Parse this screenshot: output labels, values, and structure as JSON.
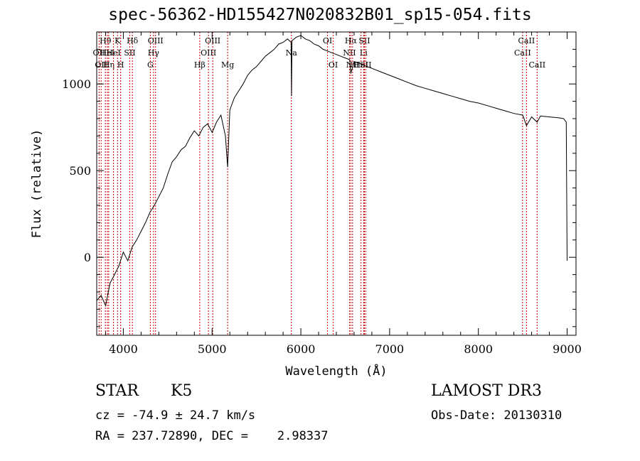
{
  "chart_data": {
    "type": "line",
    "title": "spec-56362-HD155427N020832B01_sp15-054.fits",
    "xlabel": "Wavelength (Å)",
    "ylabel": "Flux (relative)",
    "xlim": [
      3700,
      9100
    ],
    "ylim": [
      -450,
      1300
    ],
    "xticks": [
      4000,
      5000,
      6000,
      7000,
      8000,
      9000
    ],
    "yticks": [
      0,
      500,
      1000
    ],
    "series": [
      {
        "name": "spectrum",
        "x": [
          3700,
          3750,
          3800,
          3850,
          3900,
          3950,
          4000,
          4050,
          4100,
          4150,
          4200,
          4250,
          4300,
          4350,
          4400,
          4450,
          4500,
          4550,
          4600,
          4650,
          4700,
          4750,
          4800,
          4850,
          4900,
          4950,
          5000,
          5050,
          5100,
          5150,
          5175,
          5200,
          5250,
          5300,
          5350,
          5400,
          5450,
          5500,
          5550,
          5600,
          5650,
          5700,
          5750,
          5800,
          5850,
          5890,
          5895,
          5900,
          5950,
          6000,
          6050,
          6100,
          6150,
          6200,
          6250,
          6300,
          6350,
          6400,
          6450,
          6500,
          6550,
          6563,
          6600,
          6650,
          6700,
          6750,
          6800,
          6900,
          7000,
          7100,
          7200,
          7300,
          7400,
          7500,
          7600,
          7700,
          7800,
          7900,
          8000,
          8100,
          8200,
          8300,
          8400,
          8500,
          8542,
          8600,
          8662,
          8700,
          8800,
          8900,
          8960,
          8990,
          9000
        ],
        "y": [
          -250,
          -220,
          -280,
          -150,
          -100,
          -50,
          30,
          -20,
          60,
          100,
          150,
          200,
          260,
          300,
          350,
          400,
          480,
          550,
          580,
          620,
          640,
          690,
          730,
          700,
          750,
          770,
          720,
          780,
          820,
          700,
          520,
          850,
          920,
          960,
          1000,
          1050,
          1080,
          1100,
          1130,
          1160,
          1180,
          1200,
          1230,
          1240,
          1260,
          1240,
          930,
          1250,
          1270,
          1280,
          1260,
          1250,
          1230,
          1220,
          1200,
          1190,
          1180,
          1170,
          1160,
          1150,
          1140,
          1060,
          1130,
          1120,
          1110,
          1100,
          1090,
          1070,
          1050,
          1030,
          1010,
          990,
          975,
          960,
          945,
          930,
          915,
          900,
          890,
          875,
          860,
          845,
          830,
          820,
          760,
          810,
          780,
          815,
          810,
          805,
          800,
          780,
          -20
        ]
      }
    ],
    "lines": [
      {
        "wavelength": 3727,
        "label": "OII",
        "row": 2
      },
      {
        "wavelength": 3750,
        "label": "OII",
        "row": 3
      },
      {
        "wavelength": 3798,
        "label": "Hθ",
        "row": 1
      },
      {
        "wavelength": 3820,
        "label": "HeI",
        "row": 2
      },
      {
        "wavelength": 3835,
        "label": "Hη",
        "row": 3
      },
      {
        "wavelength": 3889,
        "label": "HeI",
        "row": 2
      },
      {
        "wavelength": 3934,
        "label": "K",
        "row": 1
      },
      {
        "wavelength": 3970,
        "label": "H",
        "row": 3
      },
      {
        "wavelength": 4072,
        "label": "SII",
        "row": 2
      },
      {
        "wavelength": 4102,
        "label": "Hδ",
        "row": 1
      },
      {
        "wavelength": 4304,
        "label": "G",
        "row": 3
      },
      {
        "wavelength": 4340,
        "label": "Hγ",
        "row": 2
      },
      {
        "wavelength": 4363,
        "label": "OIII",
        "row": 1
      },
      {
        "wavelength": 4861,
        "label": "Hβ",
        "row": 3
      },
      {
        "wavelength": 4959,
        "label": "OIII",
        "row": 2
      },
      {
        "wavelength": 5007,
        "label": "OIII",
        "row": 1
      },
      {
        "wavelength": 5175,
        "label": "Mg",
        "row": 3
      },
      {
        "wavelength": 5893,
        "label": "Na",
        "row": 2
      },
      {
        "wavelength": 6300,
        "label": "OI",
        "row": 1
      },
      {
        "wavelength": 6364,
        "label": "OI",
        "row": 3
      },
      {
        "wavelength": 6548,
        "label": "NII",
        "row": 2
      },
      {
        "wavelength": 6563,
        "label": "Hα",
        "row": 1
      },
      {
        "wavelength": 6583,
        "label": "NII",
        "row": 3
      },
      {
        "wavelength": 6678,
        "label": "HeI",
        "row": 3
      },
      {
        "wavelength": 6707,
        "label": "Li",
        "row": 2
      },
      {
        "wavelength": 6716,
        "label": "SII",
        "row": 1
      },
      {
        "wavelength": 6731,
        "label": "SII",
        "row": 3
      },
      {
        "wavelength": 8498,
        "label": "CaII",
        "row": 2
      },
      {
        "wavelength": 8542,
        "label": "CaII",
        "row": 1
      },
      {
        "wavelength": 8662,
        "label": "CaII",
        "row": 3
      }
    ]
  },
  "info": {
    "class": "STAR",
    "subclass": "K5",
    "cz": "cz = -74.9 ± 24.7 km/s",
    "radec": "RA = 237.72890, DEC =    2.98337",
    "survey": "LAMOST DR3",
    "obsdate": "Obs-Date: 20130310"
  }
}
